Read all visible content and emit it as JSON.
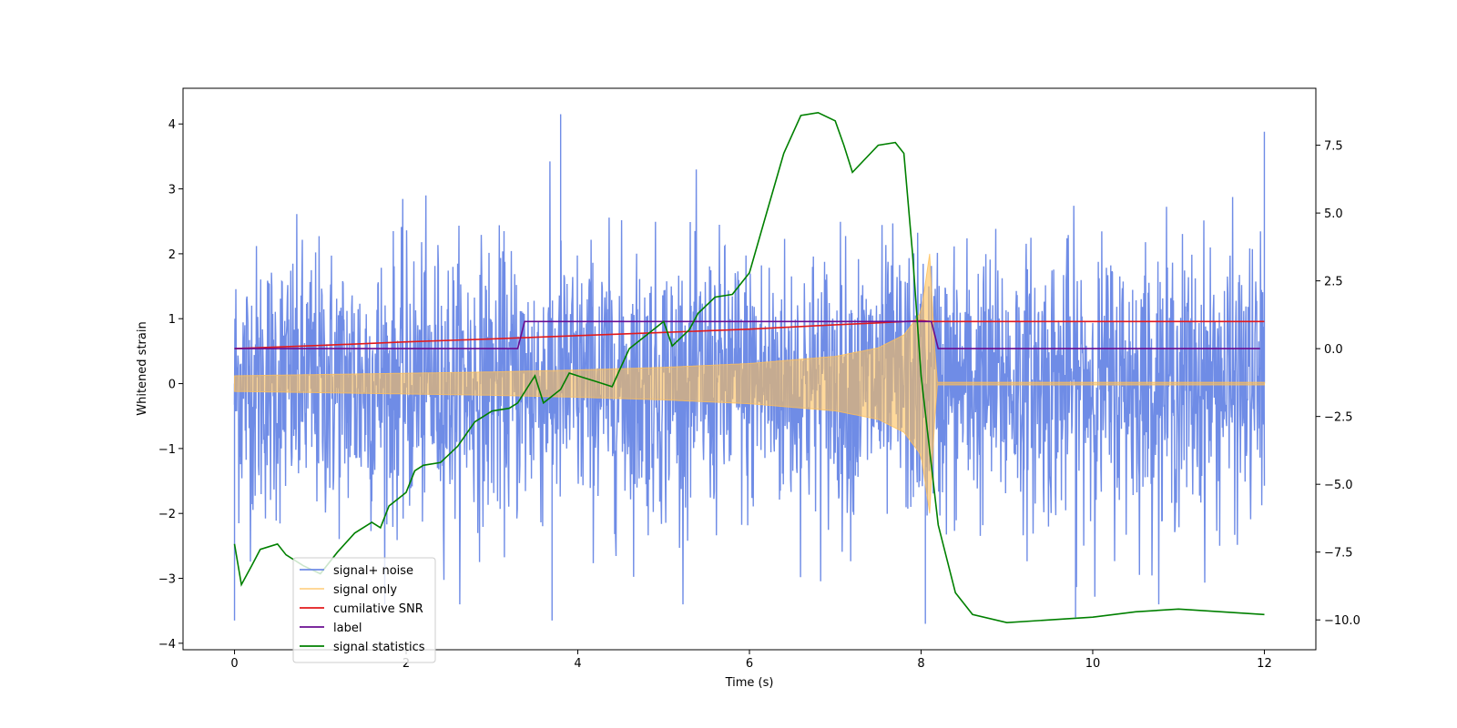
{
  "chart_data": {
    "type": "line",
    "title": "",
    "xlabel": "Time (s)",
    "ylabel": "Whitened strain",
    "y2label": "",
    "xlim": [
      -0.6,
      12.6
    ],
    "ylim": [
      -4.1,
      4.55
    ],
    "y2lim": [
      -11.1,
      9.6
    ],
    "x_ticks": [
      0,
      2,
      4,
      6,
      8,
      10,
      12
    ],
    "y_ticks": [
      -4,
      -3,
      -2,
      -1,
      0,
      1,
      2,
      3,
      4
    ],
    "y2_ticks": [
      -10.0,
      -7.5,
      -5.0,
      -2.5,
      0.0,
      2.5,
      5.0,
      7.5
    ],
    "x_tick_labels": [
      "0",
      "2",
      "4",
      "6",
      "8",
      "10",
      "12"
    ],
    "y_tick_labels": [
      "−4",
      "−3",
      "−2",
      "−1",
      "0",
      "1",
      "2",
      "3",
      "4"
    ],
    "y2_tick_labels": [
      "−10.0",
      "−7.5",
      "−5.0",
      "−2.5",
      "0.0",
      "2.5",
      "5.0",
      "7.5"
    ],
    "legend_position": "lower-left",
    "series": [
      {
        "name": "signal+ noise",
        "color": "#6f8ce6",
        "axis": "left",
        "description": "noisy strain, approx. gaussian, sigma ~1.1, spanning 0 to 12 s",
        "x_range": [
          0,
          12
        ],
        "sigma": 1.1,
        "peaks": [
          [
            3.8,
            4.15
          ],
          [
            12.0,
            3.88
          ],
          [
            0.0,
            -3.65
          ],
          [
            9.8,
            -3.6
          ],
          [
            8.05,
            -3.7
          ],
          [
            3.7,
            -3.65
          ]
        ]
      },
      {
        "name": "signal only",
        "color": "#ffbf59",
        "axis": "left",
        "description": "chirp with amplitude growing from ~0.12 to ~2.0 at merger (t≈8.1s), then ~0",
        "envelope_x": [
          0,
          1,
          2,
          3,
          4,
          5,
          6,
          7,
          7.5,
          7.8,
          8.0,
          8.1,
          8.18,
          12
        ],
        "envelope_y": [
          0.12,
          0.14,
          0.16,
          0.18,
          0.21,
          0.25,
          0.31,
          0.42,
          0.55,
          0.75,
          1.1,
          2.0,
          0.02,
          0.02
        ]
      },
      {
        "name": "cumilative SNR",
        "color": "#e31a1c",
        "axis": "right",
        "x": [
          0,
          1,
          2,
          3,
          4,
          5,
          6,
          7,
          7.5,
          7.8,
          8.0,
          8.12,
          12
        ],
        "y": [
          0.0,
          0.12,
          0.25,
          0.36,
          0.48,
          0.6,
          0.72,
          0.88,
          0.95,
          1.0,
          1.03,
          1.0,
          1.0
        ]
      },
      {
        "name": "label",
        "color": "#6a0d91",
        "axis": "right",
        "x": [
          0,
          3.3,
          3.38,
          8.12,
          8.2,
          11.95
        ],
        "y": [
          0.0,
          0.0,
          1.0,
          1.0,
          0.0,
          0.0
        ]
      },
      {
        "name": "signal statistics",
        "color": "#008000",
        "axis": "right",
        "x": [
          0,
          0.08,
          0.2,
          0.3,
          0.5,
          0.6,
          0.8,
          1.0,
          1.2,
          1.4,
          1.6,
          1.7,
          1.8,
          2.0,
          2.1,
          2.2,
          2.4,
          2.6,
          2.8,
          3.0,
          3.2,
          3.3,
          3.5,
          3.6,
          3.8,
          3.9,
          4.0,
          4.2,
          4.4,
          4.5,
          4.6,
          4.8,
          5.0,
          5.1,
          5.3,
          5.4,
          5.6,
          5.8,
          6.0,
          6.2,
          6.4,
          6.6,
          6.8,
          7.0,
          7.1,
          7.2,
          7.5,
          7.7,
          7.8,
          7.9,
          8.0,
          8.2,
          8.4,
          8.6,
          9.0,
          9.5,
          10.0,
          10.5,
          11.0,
          11.5,
          12.0
        ],
        "y": [
          -7.2,
          -8.7,
          -8.0,
          -7.4,
          -7.2,
          -7.6,
          -8.0,
          -8.3,
          -7.5,
          -6.8,
          -6.4,
          -6.6,
          -5.8,
          -5.3,
          -4.5,
          -4.3,
          -4.2,
          -3.6,
          -2.7,
          -2.3,
          -2.2,
          -2.0,
          -1.0,
          -2.0,
          -1.5,
          -0.9,
          -1.0,
          -1.2,
          -1.4,
          -0.7,
          0.0,
          0.5,
          1.0,
          0.1,
          0.7,
          1.3,
          1.9,
          2.0,
          2.8,
          5.0,
          7.2,
          8.6,
          8.7,
          8.4,
          7.5,
          6.5,
          7.5,
          7.6,
          7.2,
          3.5,
          -1.0,
          -6.5,
          -9.0,
          -9.8,
          -10.1,
          -10.0,
          -9.9,
          -9.7,
          -9.6,
          -9.7,
          -9.8
        ]
      }
    ]
  }
}
